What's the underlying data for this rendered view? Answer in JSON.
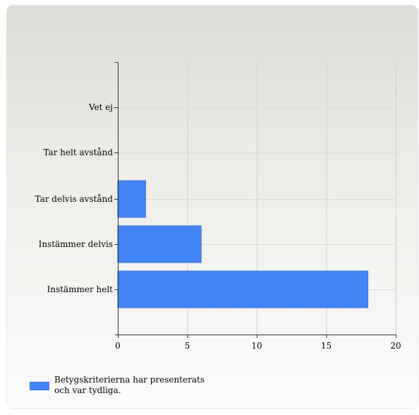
{
  "chart_data": {
    "type": "bar",
    "orientation": "horizontal",
    "categories": [
      "Vet ej",
      "Tar helt avstånd",
      "Tar delvis avstånd",
      "Instämmer delvis",
      "Instämmer helt"
    ],
    "series": [
      {
        "name": "Betygskriterierna har presenterats och var tydliga.",
        "values": [
          0,
          0,
          2,
          6,
          18
        ],
        "color": "#4285f4"
      }
    ],
    "xlim": [
      0,
      20
    ],
    "xticks": [
      0,
      5,
      10,
      15,
      20
    ],
    "grid": true,
    "legend": "bottom-left"
  }
}
